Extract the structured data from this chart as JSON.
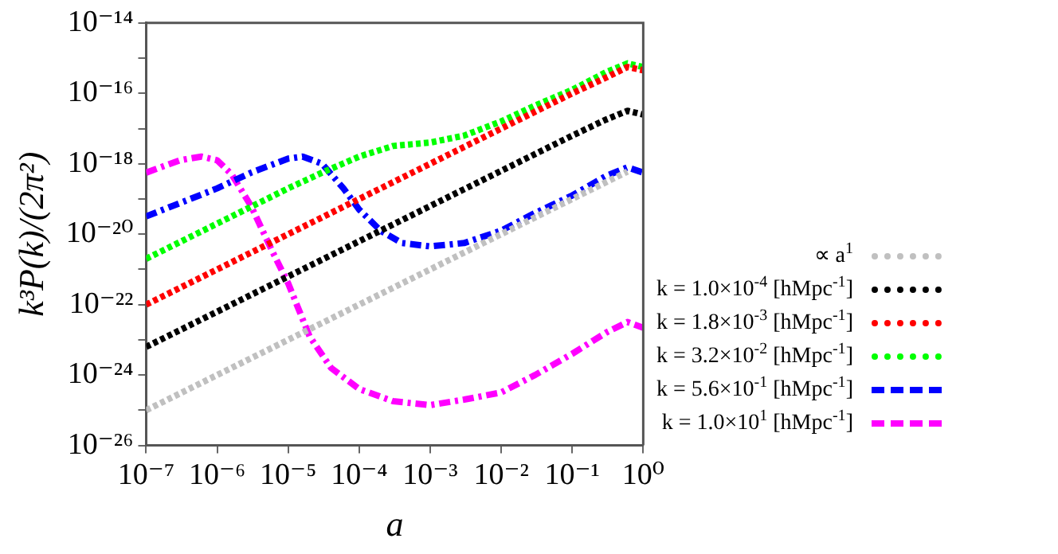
{
  "chart_data": {
    "type": "line",
    "xlabel": "a",
    "ylabel": "k³P(k)/(2π²)",
    "log": "xy",
    "grid": false,
    "legend": "right",
    "marker": "none",
    "xlim": [
      1e-07,
      1
    ],
    "ylim": [
      1e-26,
      1e-14
    ],
    "xticks": [
      {
        "value": 1e-07,
        "label": "10⁻⁷"
      },
      {
        "value": 1e-06,
        "label": "10⁻⁶"
      },
      {
        "value": 1e-05,
        "label": "10⁻⁵"
      },
      {
        "value": 0.0001,
        "label": "10⁻⁴"
      },
      {
        "value": 0.001,
        "label": "10⁻³"
      },
      {
        "value": 0.01,
        "label": "10⁻²"
      },
      {
        "value": 0.1,
        "label": "10⁻¹"
      },
      {
        "value": 1,
        "label": "10⁰"
      }
    ],
    "yticks": [
      {
        "value": 1e-26,
        "label": "10⁻²⁶"
      },
      {
        "value": 1e-25,
        "label": null
      },
      {
        "value": 1e-24,
        "label": "10⁻²⁴"
      },
      {
        "value": 1e-23,
        "label": null
      },
      {
        "value": 1e-22,
        "label": "10⁻²²"
      },
      {
        "value": 1e-21,
        "label": null
      },
      {
        "value": 1e-20,
        "label": "10⁻²⁰"
      },
      {
        "value": 1e-19,
        "label": null
      },
      {
        "value": 1e-18,
        "label": "10⁻¹⁸"
      },
      {
        "value": 1e-17,
        "label": null
      },
      {
        "value": 1e-16,
        "label": "10⁻¹⁶"
      },
      {
        "value": 1e-15,
        "label": null
      },
      {
        "value": 1e-14,
        "label": "10⁻¹⁴"
      }
    ],
    "series": [
      {
        "name": "∝ a$^{1}$",
        "color": "#c0c0c0",
        "line_style": "dotted",
        "x": [
          1e-07,
          0.6
        ],
        "values": [
          1e-25,
          6e-19
        ]
      },
      {
        "name": "k = 1.0×10$^{-4}$ [hMpc$^{-1}$]",
        "color": "#000000",
        "line_style": "dotted",
        "x": [
          1e-07,
          1e-06,
          1e-05,
          0.0001,
          0.001,
          0.01,
          0.1,
          0.3,
          0.6,
          1
        ],
        "values": [
          6.3e-24,
          6.3e-23,
          6.3e-22,
          6.3e-21,
          6.3e-20,
          6.3e-19,
          6.3e-18,
          1.8e-17,
          3.2e-17,
          2.5e-17
        ]
      },
      {
        "name": "k = 1.8×10$^{-3}$ [hMpc$^{-1}$]",
        "color": "#ff0000",
        "line_style": "dotted",
        "x": [
          1e-07,
          1e-06,
          1e-05,
          0.0001,
          0.001,
          0.01,
          0.1,
          0.3,
          0.6,
          1
        ],
        "values": [
          1e-22,
          1e-21,
          1e-20,
          1e-19,
          1e-18,
          1e-17,
          1e-16,
          2.8e-16,
          5.6e-16,
          4.5e-16
        ]
      },
      {
        "name": "k = 3.2×10$^{-2}$ [hMpc$^{-1}$]",
        "color": "#00ff00",
        "line_style": "dotted",
        "x": [
          1e-07,
          1e-06,
          1e-05,
          3e-05,
          0.0001,
          0.0003,
          0.001,
          0.003,
          0.01,
          0.03,
          0.1,
          0.3,
          0.6,
          1
        ],
        "values": [
          2e-21,
          2e-20,
          2e-19,
          5.6e-19,
          1.6e-18,
          3.2e-18,
          4e-18,
          6.3e-18,
          1.6e-17,
          4.5e-17,
          1.26e-16,
          4e-16,
          7.1e-16,
          5.6e-16
        ]
      },
      {
        "name": "k = 5.6×10$^{-1}$ [hMpc$^{-1}$]",
        "color": "#0000ff",
        "line_style": "dashed",
        "x": [
          1e-07,
          1e-06,
          3e-06,
          1e-05,
          1.6e-05,
          3e-05,
          6e-05,
          0.0001,
          0.0002,
          0.0004,
          0.001,
          0.003,
          0.01,
          0.03,
          0.1,
          0.3,
          0.6,
          1
        ],
        "values": [
          3.2e-20,
          2e-19,
          5.6e-19,
          1.4e-18,
          1.6e-18,
          1e-18,
          2e-19,
          5e-20,
          1.26e-20,
          5.6e-21,
          4.5e-21,
          5.6e-21,
          1.26e-20,
          4e-20,
          1.26e-19,
          4.5e-19,
          7.9e-19,
          5.6e-19
        ]
      },
      {
        "name": "k = 1.0×10$^{1}$ [hMpc$^{-1}$]",
        "color": "#ff00ff",
        "line_style": "dashed",
        "x": [
          1e-07,
          3e-07,
          6e-07,
          1e-06,
          1.6e-06,
          3e-06,
          6e-06,
          1e-05,
          2e-05,
          4e-05,
          0.0001,
          0.0003,
          0.001,
          0.003,
          0.01,
          0.03,
          0.1,
          0.3,
          0.6,
          1
        ],
        "values": [
          5.6e-19,
          1.26e-18,
          1.6e-18,
          1.26e-18,
          5e-19,
          6.3e-20,
          3.2e-21,
          4e-22,
          1.26e-23,
          1.6e-24,
          4e-25,
          1.8e-25,
          1.4e-25,
          2e-25,
          3.2e-25,
          1e-24,
          4e-24,
          1.6e-23,
          3.2e-23,
          2.2e-23
        ]
      }
    ]
  }
}
